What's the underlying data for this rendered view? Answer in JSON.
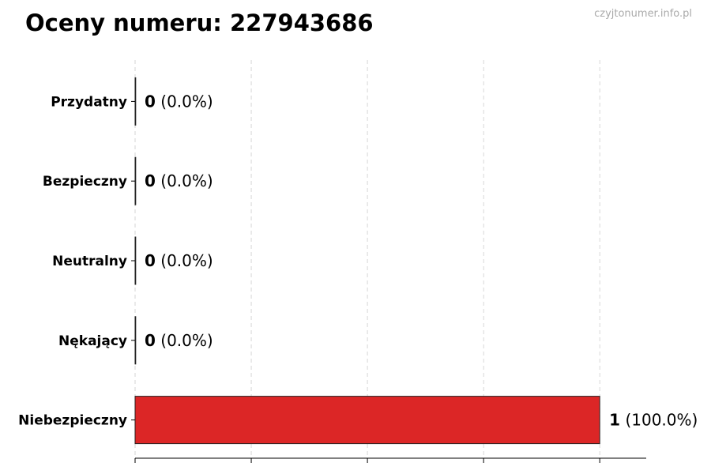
{
  "title": "Oceny numeru: 227943686",
  "watermark": "czyjtonumer.info.pl",
  "chart_data": {
    "type": "bar",
    "orientation": "horizontal",
    "title": "Oceny numeru: 227943686",
    "categories": [
      "Przydatny",
      "Bezpieczny",
      "Neutralny",
      "Nękający",
      "Niebezpieczny"
    ],
    "values": [
      0,
      0,
      0,
      0,
      1
    ],
    "labels": [
      "(0.0%)",
      "(0.0%)",
      "(0.0%)",
      "(0.0%)",
      "(100.0%)"
    ],
    "colors": [
      "#2ca02c",
      "#2ca02c",
      "#888888",
      "#e07020",
      "#dc2626"
    ],
    "xlim": [
      0,
      1.1
    ],
    "xticks": [
      0,
      0.25,
      0.5,
      0.75,
      1
    ],
    "grid": "x dashed",
    "xlabel": "",
    "ylabel": ""
  }
}
